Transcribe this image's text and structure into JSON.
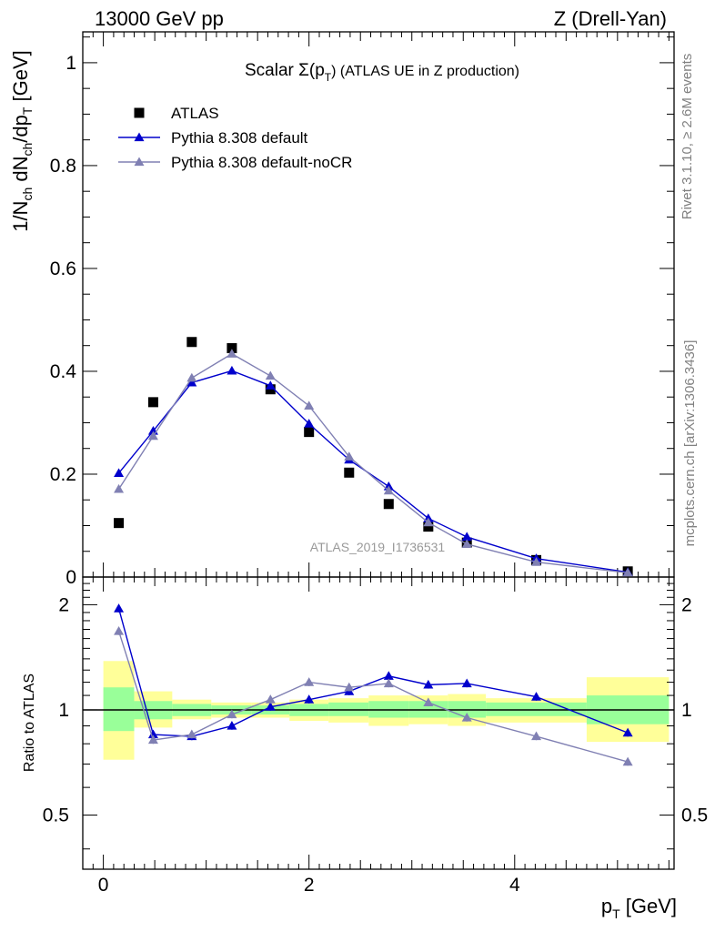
{
  "header": {
    "left": "13000 GeV pp",
    "right": "Z (Drell-Yan)"
  },
  "side_text": {
    "top": "Rivet 3.1.10, ≥ 2.6M events",
    "bottom": "mcplots.cern.ch [arXiv:1306.3436]"
  },
  "chart_data": {
    "type": "scatter",
    "title": "Scalar Σ(pT) (ATLAS UE in Z production)",
    "title_parts": {
      "main": "Scalar Σ(p",
      "sub": "T",
      "rest": ") (ATLAS UE in Z production)"
    },
    "watermark": "ATLAS_2019_I1736531",
    "xlabel": "pT [GeV]",
    "ylabel": "1/Nch dNch/dpT [GeV]",
    "ratio_ylabel": "Ratio to ATLAS",
    "xlim": [
      -0.2,
      5.55
    ],
    "ylim": [
      0,
      1.06
    ],
    "ratio_ylim": [
      0.35,
      2.4
    ],
    "ratio_scale": "log",
    "x_ticks": [
      0,
      2,
      4
    ],
    "y_ticks": [
      0,
      0.2,
      0.4,
      0.6,
      0.8,
      1
    ],
    "y_tick_labels": [
      "0",
      "0.2",
      "0.4",
      "0.6",
      "0.8",
      "1"
    ],
    "ratio_ticks": [
      0.5,
      1,
      2
    ],
    "ratio_tick_labels": [
      "0.5",
      "1",
      "2"
    ],
    "legend_position": "top-left",
    "series": [
      {
        "name": "ATLAS",
        "marker": "square",
        "color": "#000000",
        "x": [
          0.15,
          0.485,
          0.86,
          1.25,
          1.625,
          2.0,
          2.39,
          2.775,
          3.16,
          3.535,
          4.21,
          5.1
        ],
        "y": [
          0.105,
          0.34,
          0.457,
          0.445,
          0.365,
          0.282,
          0.203,
          0.142,
          0.098,
          0.067,
          0.033,
          0.011
        ]
      },
      {
        "name": "Pythia 8.308 default",
        "marker": "triangle",
        "color": "#0000cc",
        "x": [
          0.15,
          0.485,
          0.86,
          1.25,
          1.625,
          2.0,
          2.39,
          2.775,
          3.16,
          3.535,
          4.21,
          5.1
        ],
        "y": [
          0.202,
          0.284,
          0.378,
          0.401,
          0.372,
          0.298,
          0.228,
          0.176,
          0.114,
          0.078,
          0.036,
          0.0095
        ],
        "ratio": [
          1.95,
          0.85,
          0.84,
          0.9,
          1.02,
          1.07,
          1.13,
          1.25,
          1.18,
          1.19,
          1.09,
          0.86
        ]
      },
      {
        "name": "Pythia 8.308 default-noCR",
        "marker": "triangle",
        "color": "#8080b3",
        "x": [
          0.15,
          0.485,
          0.86,
          1.25,
          1.625,
          2.0,
          2.39,
          2.775,
          3.16,
          3.535,
          4.21,
          5.1
        ],
        "y": [
          0.171,
          0.274,
          0.387,
          0.434,
          0.391,
          0.333,
          0.234,
          0.168,
          0.106,
          0.064,
          0.029,
          0.0083
        ],
        "ratio": [
          1.68,
          0.82,
          0.85,
          0.97,
          1.07,
          1.2,
          1.16,
          1.19,
          1.05,
          0.95,
          0.84,
          0.71
        ]
      }
    ],
    "ratio_bands": [
      {
        "x0": 0.0,
        "x1": 0.3,
        "y1_lo": 0.87,
        "y1_hi": 1.16,
        "y2_lo": 0.72,
        "y2_hi": 1.38
      },
      {
        "x0": 0.3,
        "x1": 0.67,
        "y1_lo": 0.94,
        "y1_hi": 1.06,
        "y2_lo": 0.89,
        "y2_hi": 1.13
      },
      {
        "x0": 0.67,
        "x1": 1.05,
        "y1_lo": 0.96,
        "y1_hi": 1.04,
        "y2_lo": 0.94,
        "y2_hi": 1.07
      },
      {
        "x0": 1.05,
        "x1": 1.44,
        "y1_lo": 0.97,
        "y1_hi": 1.03,
        "y2_lo": 0.95,
        "y2_hi": 1.05
      },
      {
        "x0": 1.44,
        "x1": 1.81,
        "y1_lo": 0.97,
        "y1_hi": 1.03,
        "y2_lo": 0.95,
        "y2_hi": 1.05
      },
      {
        "x0": 1.81,
        "x1": 2.19,
        "y1_lo": 0.96,
        "y1_hi": 1.04,
        "y2_lo": 0.93,
        "y2_hi": 1.07
      },
      {
        "x0": 2.19,
        "x1": 2.58,
        "y1_lo": 0.96,
        "y1_hi": 1.05,
        "y2_lo": 0.92,
        "y2_hi": 1.08
      },
      {
        "x0": 2.58,
        "x1": 2.97,
        "y1_lo": 0.95,
        "y1_hi": 1.06,
        "y2_lo": 0.9,
        "y2_hi": 1.1
      },
      {
        "x0": 2.97,
        "x1": 3.35,
        "y1_lo": 0.95,
        "y1_hi": 1.06,
        "y2_lo": 0.91,
        "y2_hi": 1.1
      },
      {
        "x0": 3.35,
        "x1": 3.72,
        "y1_lo": 0.95,
        "y1_hi": 1.06,
        "y2_lo": 0.9,
        "y2_hi": 1.11
      },
      {
        "x0": 3.72,
        "x1": 4.7,
        "y1_lo": 0.96,
        "y1_hi": 1.05,
        "y2_lo": 0.92,
        "y2_hi": 1.08
      },
      {
        "x0": 4.7,
        "x1": 5.5,
        "y1_lo": 0.91,
        "y1_hi": 1.1,
        "y2_lo": 0.81,
        "y2_hi": 1.24
      }
    ],
    "band_colors": {
      "inner": "#99ff99",
      "outer": "#ffff99"
    }
  }
}
